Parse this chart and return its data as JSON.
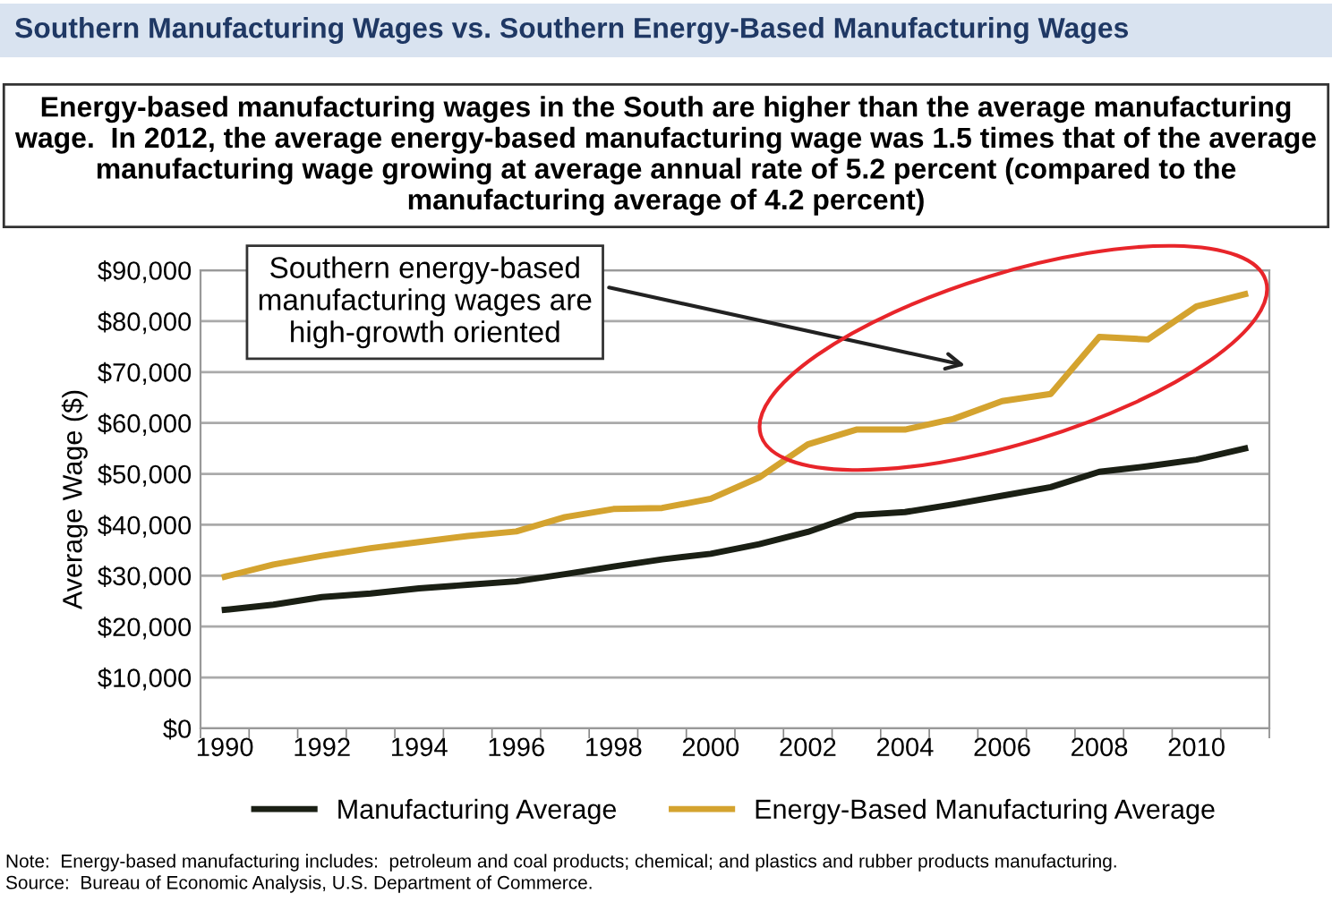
{
  "chart_data": {
    "type": "line",
    "title": "Southern Manufacturing Wages vs. Southern Energy-Based Manufacturing Wages",
    "subtitle": "Energy-based manufacturing wages in the South are higher than the average manufacturing wage.  In 2012, the average energy-based manufacturing wage was 1.5 times that of the average manufacturing wage growing at average annual rate of 5.2 percent (compared to the manufacturing average of 4.2 percent)",
    "ylabel": "Average Wage ($)",
    "categories": [
      "1990",
      null,
      "1992",
      null,
      "1994",
      null,
      "1996",
      null,
      "1998",
      null,
      "2000",
      null,
      "2002",
      null,
      "2004",
      null,
      "2006",
      null,
      "2008",
      null,
      "2010",
      null
    ],
    "series": [
      {
        "name": "Manufacturing Average",
        "color": "#1a1f14",
        "values": [
          23300,
          24300,
          25800,
          26500,
          27500,
          28200,
          28900,
          30300,
          31800,
          33200,
          34300,
          36200,
          38600,
          41900,
          42500,
          44000,
          45700,
          47400,
          50400,
          51500,
          52800,
          55000
        ]
      },
      {
        "name": "Energy-Based Manufacturing Average",
        "color": "#d4a32f",
        "values": [
          29800,
          32200,
          33900,
          35400,
          36600,
          37800,
          38700,
          41500,
          43100,
          43300,
          45100,
          49300,
          55800,
          58700,
          58700,
          60800,
          64300,
          65700,
          76900,
          76400,
          82900,
          85300
        ]
      }
    ],
    "ylim": [
      0,
      90000
    ],
    "yticks": [
      {
        "value": 0,
        "label": "$0"
      },
      {
        "value": 10000,
        "label": "$10,000"
      },
      {
        "value": 20000,
        "label": "$20,000"
      },
      {
        "value": 30000,
        "label": "$30,000"
      },
      {
        "value": 40000,
        "label": "$40,000"
      },
      {
        "value": 50000,
        "label": "$50,000"
      },
      {
        "value": 60000,
        "label": "$60,000"
      },
      {
        "value": 70000,
        "label": "$70,000"
      },
      {
        "value": 80000,
        "label": "$80,000"
      },
      {
        "value": 90000,
        "label": "$90,000"
      }
    ],
    "grid": "y",
    "legend": "bottom",
    "marker": "none",
    "line_style": "solid",
    "annotations": [
      "Southern energy-based\nmanufacturing wages are\nhigh-growth oriented",
      "Note:  Energy-based manufacturing includes:  petroleum and coal products; chemical; and plastics and rubber products manufacturing.",
      "Source:  Bureau of Economic Analysis, U.S. Department of Commerce."
    ]
  }
}
